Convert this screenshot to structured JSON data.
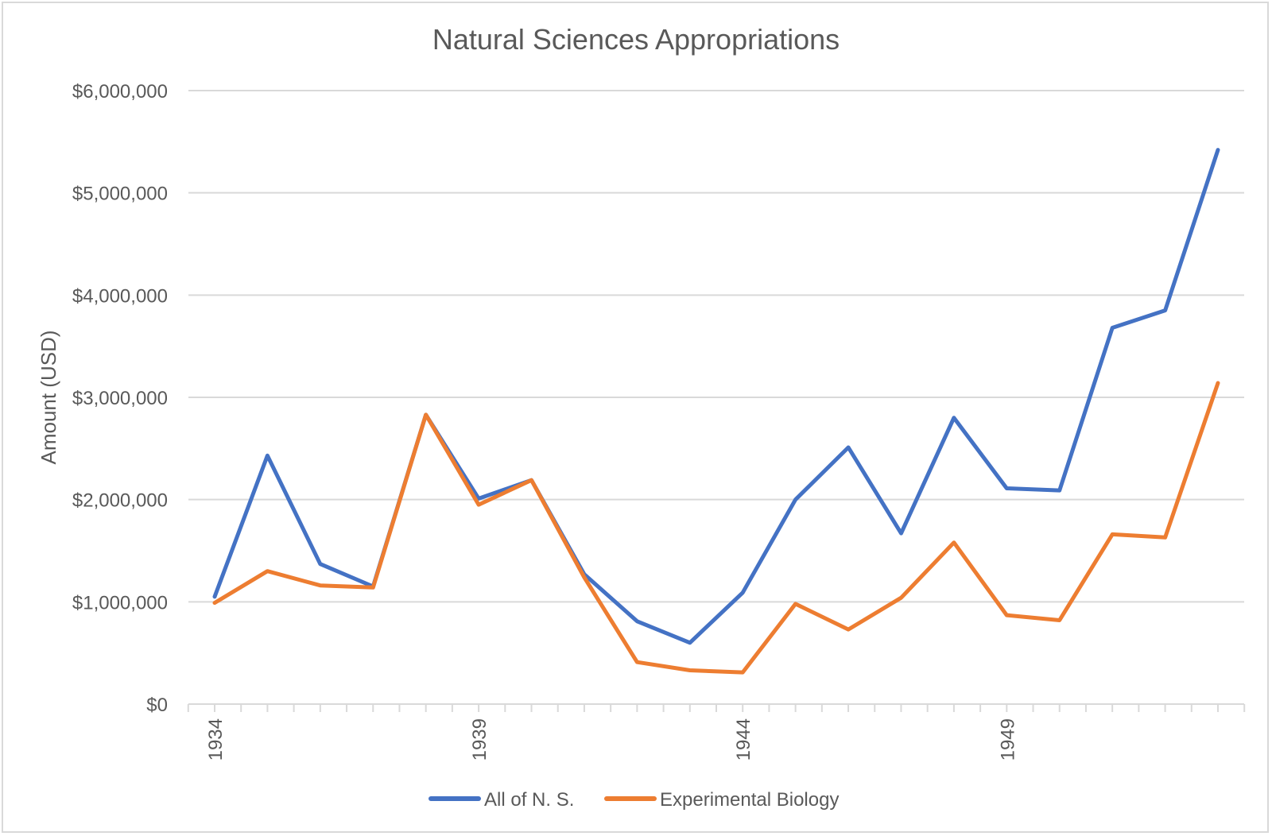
{
  "chart_data": {
    "type": "line",
    "title": "Natural Sciences Appropriations",
    "xlabel": "",
    "ylabel": "Amount (USD)",
    "x": [
      1934,
      1935,
      1936,
      1937,
      1938,
      1939,
      1940,
      1941,
      1942,
      1943,
      1944,
      1945,
      1946,
      1947,
      1948,
      1949,
      1950,
      1951,
      1952,
      1953
    ],
    "x_tick_labels": [
      "1934",
      "1939",
      "1944",
      "1949"
    ],
    "x_tick_values": [
      1934,
      1939,
      1944,
      1949
    ],
    "ylim": [
      0,
      6000000
    ],
    "y_ticks": [
      0,
      1000000,
      2000000,
      3000000,
      4000000,
      5000000,
      6000000
    ],
    "y_tick_labels": [
      "$0",
      "$1,000,000",
      "$2,000,000",
      "$3,000,000",
      "$4,000,000",
      "$5,000,000",
      "$6,000,000"
    ],
    "grid": true,
    "legend_position": "bottom",
    "series": [
      {
        "name": "All of N. S.",
        "color": "#4472c4",
        "values": [
          1050000,
          2430000,
          1370000,
          1150000,
          2830000,
          2010000,
          2190000,
          1270000,
          810000,
          600000,
          1090000,
          2000000,
          2510000,
          1670000,
          2800000,
          2110000,
          2090000,
          3680000,
          3850000,
          5420000
        ]
      },
      {
        "name": "Experimental Biology",
        "color": "#ed7d31",
        "values": [
          990000,
          1300000,
          1160000,
          1140000,
          2830000,
          1950000,
          2190000,
          1240000,
          410000,
          330000,
          310000,
          980000,
          730000,
          1040000,
          1580000,
          870000,
          820000,
          1660000,
          1630000,
          3140000
        ]
      }
    ]
  }
}
